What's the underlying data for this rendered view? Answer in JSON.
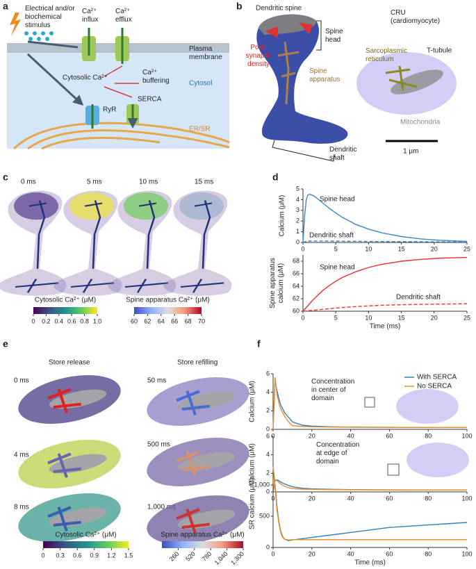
{
  "panels": {
    "a": {
      "label": "a",
      "stimulus": [
        "Electrical and/or",
        "biochemical",
        "stimulus"
      ],
      "influx": [
        "Ca²⁺",
        "influx"
      ],
      "efflux": [
        "Ca²⁺",
        "efflux"
      ],
      "membrane": [
        "Plasma",
        "membrane"
      ],
      "cytosolic": "Cytosolic Ca²⁺",
      "buffering": [
        "Ca²⁺",
        "buffering"
      ],
      "cytosol": "Cytosol",
      "ryr": "RyR",
      "serca": "SERCA",
      "er": "ER/SR"
    },
    "b": {
      "label": "b",
      "spine": "Dendritic spine",
      "head": [
        "Spine",
        "head"
      ],
      "psd": [
        "Post-",
        "synaptic",
        "density"
      ],
      "apparatus": [
        "Spine",
        "apparatus"
      ],
      "shaft": [
        "Dendritic",
        "shaft"
      ],
      "cru": [
        "CRU",
        "(cardiomyocyte)"
      ],
      "sr": [
        "Sarcoplasmic",
        "reticulum"
      ],
      "ttubule": "T-tubule",
      "mito": "Mitochondria",
      "scale": "1 µm"
    },
    "c": {
      "label": "c",
      "times": [
        "0 ms",
        "5 ms",
        "10 ms",
        "15 ms"
      ]
    },
    "d": {
      "label": "d"
    },
    "e": {
      "label": "e",
      "release": "Store release",
      "refilling": "Store refilling",
      "times_release": [
        "0 ms",
        "4 ms",
        "8 ms"
      ],
      "times_refilling": [
        "50 ms",
        "500 ms",
        "1,000 ms"
      ]
    },
    "f": {
      "label": "f"
    }
  },
  "colorbars": [
    {
      "title": "Cytosolic Ca²⁺ (μM)",
      "colormap": "viridis",
      "lim": [
        0,
        1
      ],
      "ticks": [
        0,
        0.2,
        0.4,
        0.6,
        0.8,
        {
          "value": 1,
          "label": "1.0"
        }
      ]
    },
    {
      "title": "Spine apparatus Ca²⁺ (μM)",
      "colormap": "coolwarm",
      "lim": [
        60,
        70
      ],
      "ticks": [
        60,
        62,
        64,
        66,
        68,
        70
      ]
    },
    {
      "title": "Cytosolic Ca²⁺ (μM)",
      "colormap": "viridis",
      "lim": [
        0,
        1.5
      ],
      "ticks": [
        0,
        0.3,
        0.6,
        0.9,
        1.2,
        1.5
      ]
    },
    {
      "title": "Spine apparatus Ca²⁺ (μM)",
      "colormap": "coolwarm",
      "lim": [
        0,
        1300
      ],
      "ticks": [
        260,
        520,
        780,
        {
          "value": 1040,
          "label": "1,040"
        },
        {
          "value": 1300,
          "label": "1,300"
        }
      ]
    }
  ],
  "chart_data": [
    {
      "type": "line",
      "ylabel": "Calcium (μM)",
      "xlim": [
        0,
        25
      ],
      "ylim": [
        0,
        5
      ],
      "xticks": [
        0,
        5,
        10,
        15,
        20,
        25
      ],
      "yticks": [
        0,
        1,
        2,
        3,
        4,
        5
      ],
      "x": [
        0,
        0.25,
        0.5,
        0.75,
        1,
        1.5,
        2,
        3,
        4,
        5,
        6,
        8,
        10,
        12,
        15,
        18,
        21,
        25
      ],
      "series": [
        {
          "name": "Spine head",
          "color": "#3a86c8",
          "dash": false,
          "values": [
            0,
            2.5,
            4.0,
            4.45,
            4.5,
            4.4,
            4.2,
            3.7,
            3.2,
            2.75,
            2.35,
            1.7,
            1.25,
            0.9,
            0.55,
            0.33,
            0.2,
            0.1
          ]
        },
        {
          "name": "Dendritic shaft",
          "color": "#3a86c8",
          "dash": true,
          "values": [
            0,
            0.05,
            0.1,
            0.12,
            0.13,
            0.14,
            0.14,
            0.14,
            0.13,
            0.13,
            0.12,
            0.11,
            0.1,
            0.09,
            0.08,
            0.07,
            0.06,
            0.05
          ]
        }
      ]
    },
    {
      "type": "line",
      "ylabel": [
        "Spine apparatus",
        "calcium (μM)"
      ],
      "xlabel": "Time (ms)",
      "xlim": [
        0,
        25
      ],
      "ylim": [
        60,
        69
      ],
      "xticks": [
        0,
        5,
        10,
        15,
        20,
        25
      ],
      "yticks": [
        60,
        62,
        64,
        66,
        68
      ],
      "x": [
        0,
        0.25,
        0.5,
        0.75,
        1,
        1.5,
        2,
        3,
        4,
        5,
        6,
        8,
        10,
        12,
        15,
        18,
        21,
        25
      ],
      "series": [
        {
          "name": "Spine head",
          "color": "#e8302a",
          "dash": false,
          "values": [
            60,
            60.3,
            60.6,
            60.9,
            61.2,
            61.8,
            62.3,
            63.3,
            64.1,
            64.8,
            65.4,
            66.3,
            67,
            67.5,
            68,
            68.3,
            68.5,
            68.6
          ]
        },
        {
          "name": "Dendritic shaft",
          "color": "#e8302a",
          "dash": true,
          "values": [
            60,
            60.02,
            60.05,
            60.07,
            60.1,
            60.15,
            60.2,
            60.3,
            60.4,
            60.5,
            60.6,
            60.75,
            60.85,
            60.95,
            61.05,
            61.1,
            61.15,
            61.2
          ]
        }
      ]
    },
    {
      "type": "line",
      "ylabel": "Calcium (μM)",
      "annotation": [
        "Concentration",
        "in center of",
        "domain"
      ],
      "legend": "upper right",
      "xlim": [
        0,
        100
      ],
      "ylim": [
        0,
        6
      ],
      "xticks": [
        0,
        20,
        40,
        60,
        80,
        100
      ],
      "yticks": [
        0,
        2,
        4,
        6
      ],
      "x": [
        0,
        1,
        2,
        3,
        4,
        5,
        6,
        8,
        10,
        15,
        20,
        30,
        40,
        50,
        60,
        80,
        100
      ],
      "series": [
        {
          "name": "With SERCA",
          "color": "#2f7fc1",
          "values": [
            0,
            5.3,
            4.2,
            3.3,
            2.6,
            2.2,
            1.8,
            1.3,
            0.8,
            0.45,
            0.35,
            0.28,
            0.25,
            0.23,
            0.22,
            0.2,
            0.2
          ]
        },
        {
          "name": "No SERCA",
          "color": "#ef8a1f",
          "values": [
            0,
            5.6,
            3.8,
            2.8,
            2.2,
            1.8,
            1.4,
            0.8,
            0.4,
            0.3,
            0.28,
            0.25,
            0.23,
            0.22,
            0.21,
            0.2,
            0.2
          ]
        }
      ]
    },
    {
      "type": "line",
      "ylabel": "Calcium (μM)",
      "annotation": [
        "Concentration",
        "at edge of",
        "domain"
      ],
      "xlim": [
        0,
        100
      ],
      "ylim": [
        0,
        6
      ],
      "xticks": [
        0,
        20,
        40,
        60,
        80,
        100
      ],
      "yticks": [
        0,
        2,
        4,
        6
      ],
      "x": [
        0,
        1,
        2,
        3,
        4,
        5,
        6,
        8,
        10,
        15,
        20,
        30,
        40,
        50,
        60,
        80,
        100
      ],
      "series": [
        {
          "color": "#2f7fc1",
          "values": [
            0,
            1.2,
            1.3,
            1.2,
            1.05,
            0.95,
            0.85,
            0.7,
            0.55,
            0.4,
            0.33,
            0.28,
            0.25,
            0.23,
            0.22,
            0.2,
            0.2
          ]
        },
        {
          "color": "#ef8a1f",
          "values": [
            0,
            1.3,
            1.2,
            1.0,
            0.85,
            0.7,
            0.6,
            0.45,
            0.35,
            0.3,
            0.28,
            0.25,
            0.23,
            0.22,
            0.21,
            0.2,
            0.2
          ]
        }
      ]
    },
    {
      "type": "line",
      "ylabel": "SR calcium (μM)",
      "xlabel": "Time (ms)",
      "xlim": [
        0,
        100
      ],
      "ylim": [
        0,
        1400
      ],
      "xticks": [
        0,
        20,
        40,
        60,
        80,
        100
      ],
      "yticks": [
        0,
        500,
        {
          "value": 1000,
          "label": "1,000"
        }
      ],
      "x": [
        0,
        1,
        2,
        3,
        4,
        5,
        6,
        8,
        10,
        15,
        20,
        30,
        40,
        50,
        60,
        80,
        100
      ],
      "series": [
        {
          "color": "#2f7fc1",
          "values": [
            1300,
            1000,
            650,
            400,
            250,
            170,
            130,
            110,
            120,
            140,
            160,
            200,
            240,
            280,
            320,
            360,
            400
          ]
        },
        {
          "color": "#ef8a1f",
          "values": [
            1300,
            950,
            600,
            380,
            230,
            160,
            130,
            120,
            125,
            125,
            125,
            125,
            125,
            125,
            125,
            125,
            125
          ]
        }
      ]
    }
  ]
}
